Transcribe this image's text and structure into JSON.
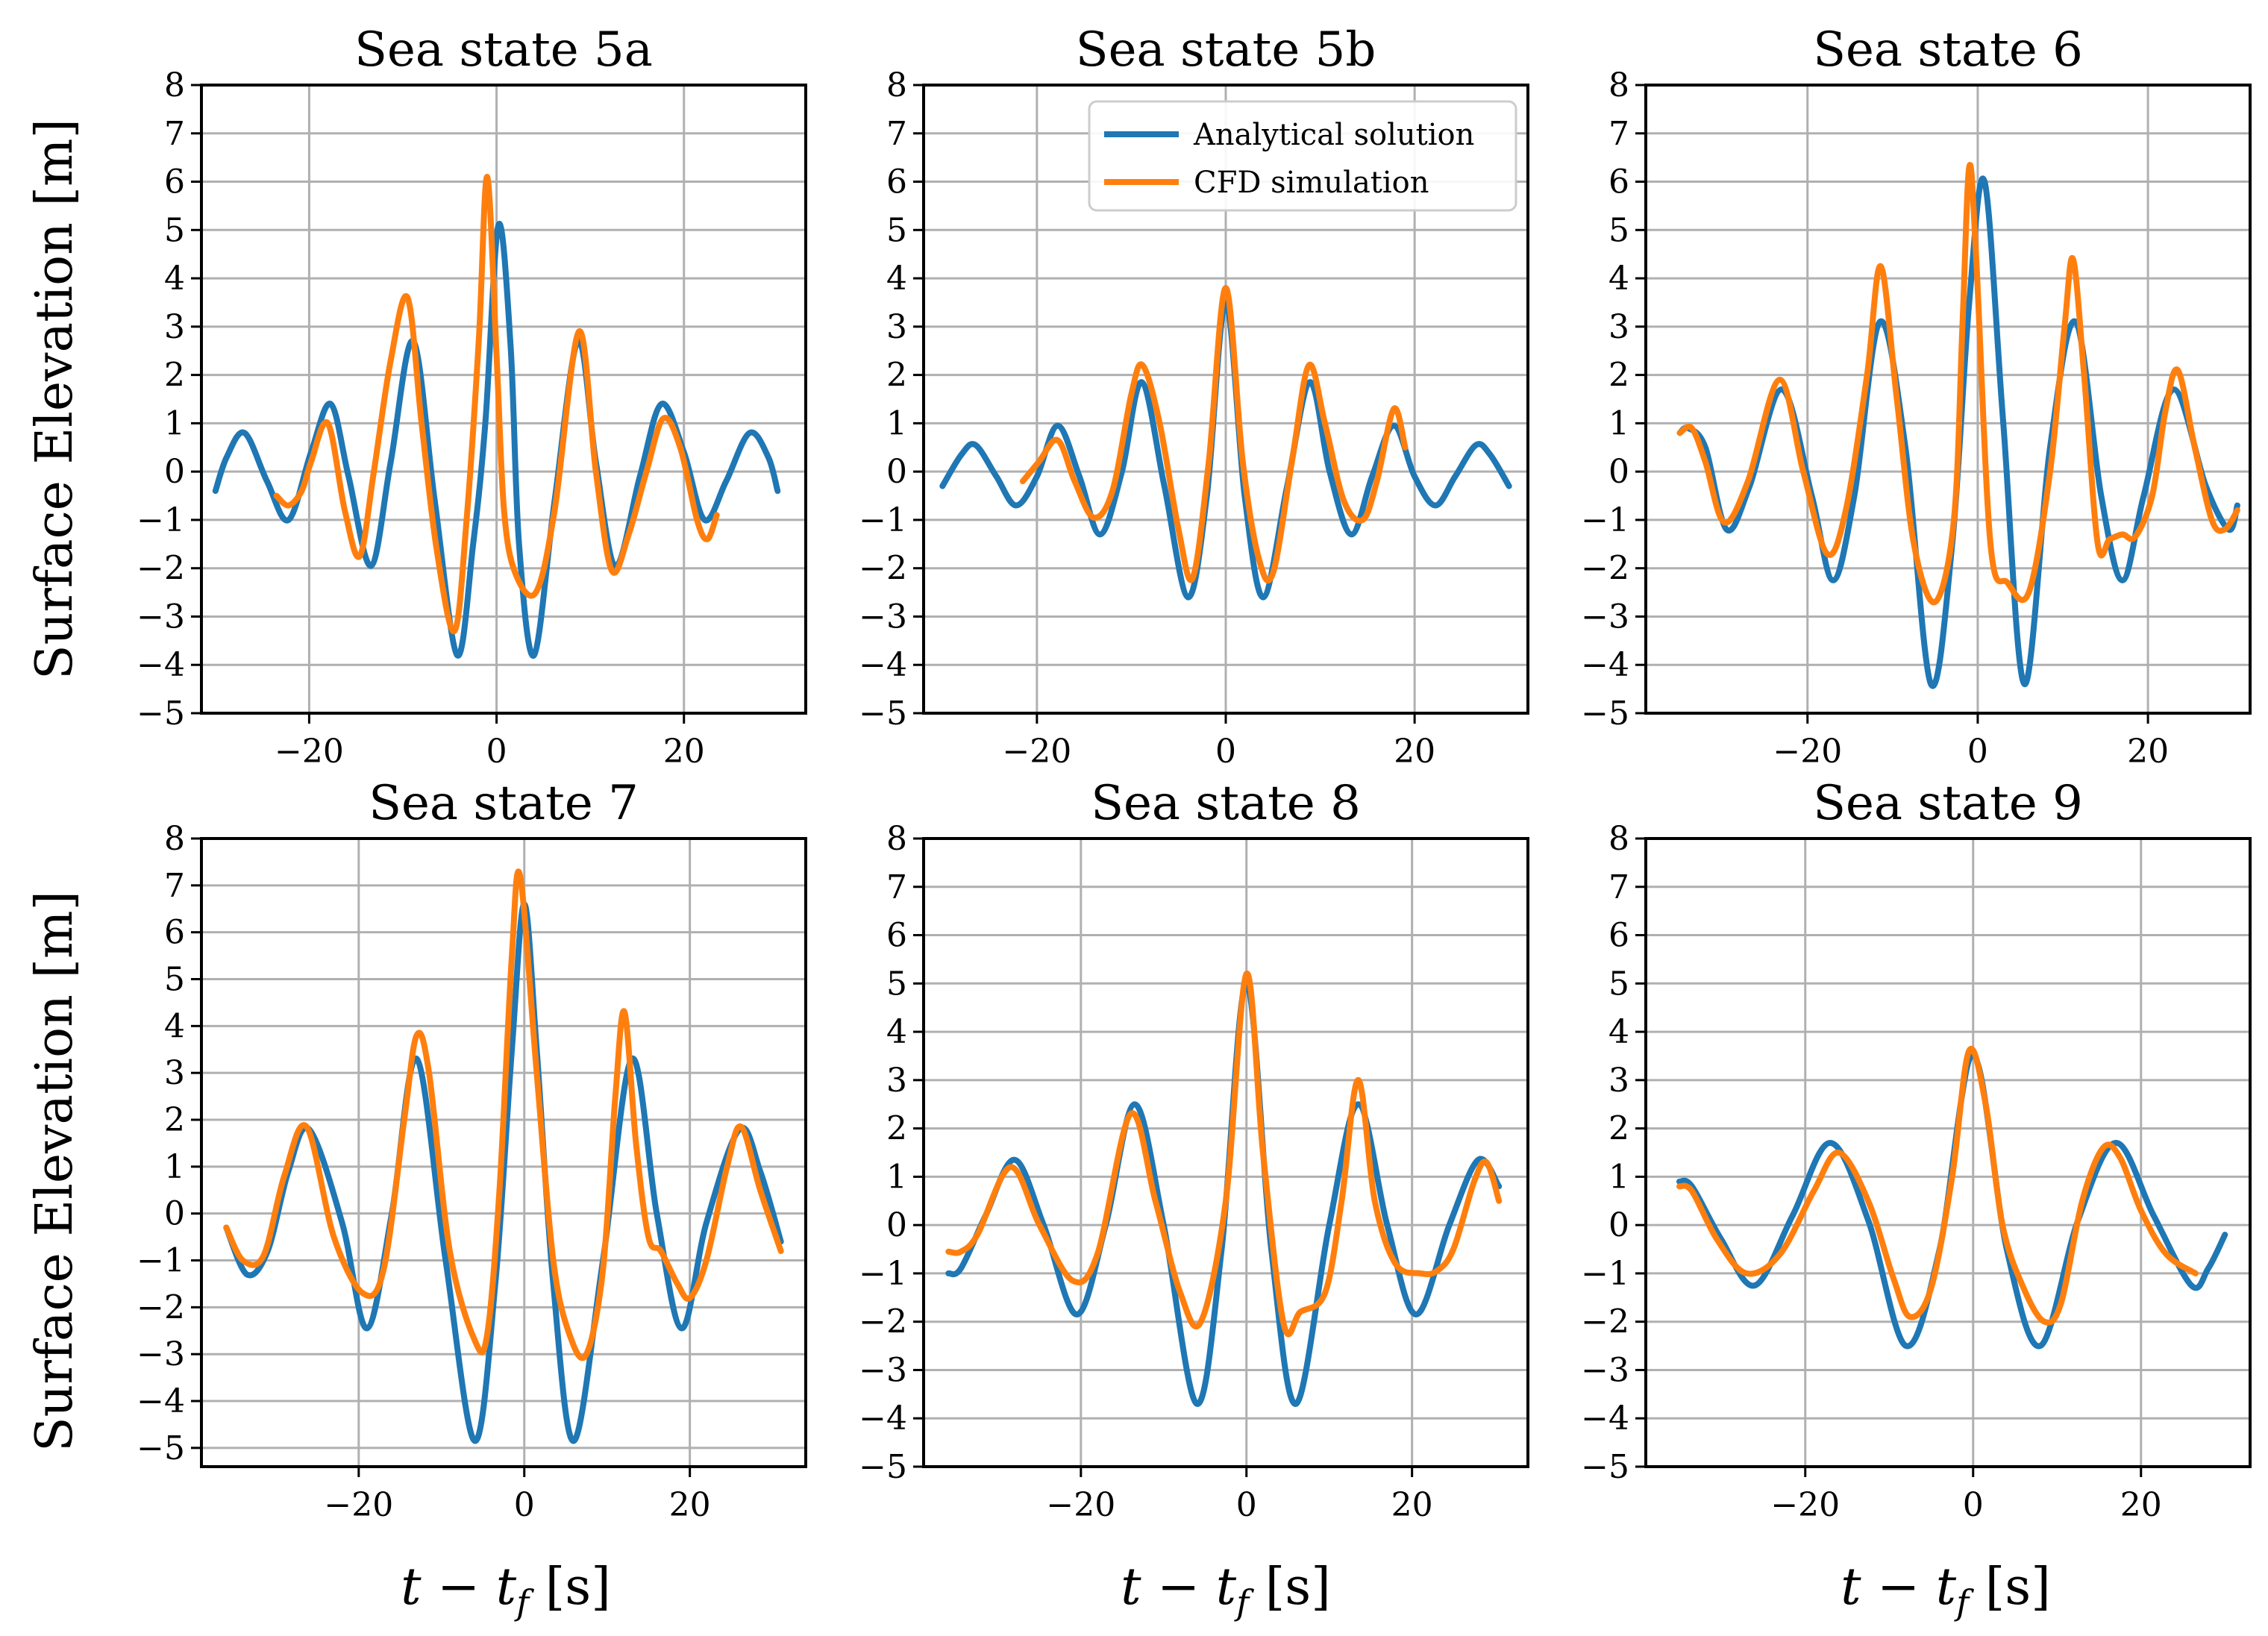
{
  "figure": {
    "ylabel": "Surface Elevation [m]",
    "xlabel": "t − t",
    "xlabel_sub": "f",
    "xlabel_unit": " [s]"
  },
  "legend": {
    "entries": [
      {
        "label": "Analytical solution",
        "color": "#1f77b4"
      },
      {
        "label": "CFD simulation",
        "color": "#ff7f0e"
      }
    ],
    "panel": 1,
    "placement": "upper-center"
  },
  "chart_data": [
    {
      "type": "line",
      "title": "Sea state 5a",
      "xlim": [
        -31.5,
        33
      ],
      "ylim": [
        -5,
        8
      ],
      "xticks": [
        -20,
        0,
        20
      ],
      "xtick_labels": [
        "−20",
        "0",
        "20"
      ],
      "yticks": [
        -5,
        -4,
        -3,
        -2,
        -1,
        0,
        1,
        2,
        3,
        4,
        5,
        6,
        7,
        8
      ],
      "ytick_labels": [
        "−5",
        "−4",
        "−3",
        "−2",
        "−1",
        "0",
        "1",
        "2",
        "3",
        "4",
        "5",
        "6",
        "7",
        "8"
      ],
      "series": [
        {
          "name": "Analytical solution",
          "x": [
            -30,
            -28.8,
            -26.9,
            -24.5,
            -22.2,
            -19.8,
            -17.7,
            -15.8,
            -13.4,
            -11.3,
            -8.9,
            -6.6,
            -4.2,
            -2.5,
            -1.2,
            0.2,
            1.5,
            2.4,
            4.0,
            6.2,
            8.7,
            10.6,
            12.7,
            15.3,
            17.6,
            20.0,
            22.2,
            24.5,
            27.0,
            29.0,
            30.0
          ],
          "y": [
            -0.4,
            0.3,
            0.8,
            -0.2,
            -1.0,
            0.4,
            1.4,
            -0.1,
            -1.95,
            0.2,
            2.7,
            -0.6,
            -3.8,
            -1.5,
            1.0,
            5.1,
            2.6,
            -1.5,
            -3.8,
            -0.6,
            2.7,
            0.2,
            -1.95,
            -0.1,
            1.4,
            0.4,
            -1.0,
            -0.2,
            0.8,
            0.3,
            -0.4
          ]
        },
        {
          "name": "CFD simulation",
          "x": [
            -23.5,
            -22.2,
            -20.8,
            -19.8,
            -18.0,
            -16.2,
            -14.6,
            -13.1,
            -11.3,
            -9.5,
            -8.0,
            -6.4,
            -4.5,
            -3.2,
            -1.9,
            -1.0,
            0.0,
            0.8,
            2.0,
            4.2,
            6.2,
            8.8,
            10.6,
            12.3,
            14.1,
            16.0,
            17.8,
            19.6,
            21.4,
            22.5,
            23.5
          ],
          "y": [
            -0.5,
            -0.7,
            -0.4,
            0.2,
            1.0,
            -0.8,
            -1.75,
            0.0,
            2.3,
            3.6,
            1.0,
            -1.6,
            -3.3,
            -1.0,
            2.7,
            6.1,
            2.4,
            -0.8,
            -2.1,
            -2.5,
            -0.8,
            2.9,
            0.0,
            -2.05,
            -1.3,
            0.0,
            1.1,
            0.5,
            -1.0,
            -1.4,
            -0.9
          ]
        }
      ]
    },
    {
      "type": "line",
      "title": "Sea state 5b",
      "xlim": [
        -32,
        32
      ],
      "ylim": [
        -5,
        8
      ],
      "xticks": [
        -20,
        0,
        20
      ],
      "xtick_labels": [
        "−20",
        "0",
        "20"
      ],
      "yticks": [
        -5,
        -4,
        -3,
        -2,
        -1,
        0,
        1,
        2,
        3,
        4,
        5,
        6,
        7,
        8
      ],
      "ytick_labels": [
        "−5",
        "−4",
        "−3",
        "−2",
        "−1",
        "0",
        "1",
        "2",
        "3",
        "4",
        "5",
        "6",
        "7",
        "8"
      ],
      "series": [
        {
          "name": "Analytical solution",
          "x": [
            -30,
            -28.0,
            -26.5,
            -24.3,
            -22.2,
            -20.0,
            -17.8,
            -15.5,
            -13.3,
            -11.0,
            -8.9,
            -6.5,
            -4.0,
            -2.0,
            0.0,
            2.0,
            4.0,
            6.5,
            8.9,
            11.0,
            13.3,
            15.5,
            17.8,
            20.0,
            22.2,
            24.3,
            26.5,
            28.0,
            30.0
          ],
          "y": [
            -0.3,
            0.35,
            0.55,
            -0.1,
            -0.7,
            -0.1,
            0.95,
            -0.1,
            -1.3,
            0.0,
            1.85,
            -0.3,
            -2.6,
            -0.5,
            3.5,
            -0.5,
            -2.6,
            -0.3,
            1.85,
            0.0,
            -1.3,
            -0.1,
            0.95,
            -0.1,
            -0.7,
            -0.1,
            0.55,
            0.35,
            -0.3
          ]
        },
        {
          "name": "CFD simulation",
          "x": [
            -21.5,
            -19.8,
            -17.8,
            -16.0,
            -14.0,
            -12.0,
            -10.0,
            -8.8,
            -7.0,
            -5.0,
            -3.5,
            -1.8,
            0.0,
            1.8,
            3.5,
            5.0,
            7.0,
            8.8,
            10.5,
            12.5,
            14.5,
            16.0,
            17.8,
            19.0
          ],
          "y": [
            -0.2,
            0.2,
            0.65,
            -0.2,
            -0.95,
            -0.4,
            1.6,
            2.2,
            1.0,
            -1.2,
            -2.2,
            0.2,
            3.8,
            0.2,
            -1.8,
            -2.1,
            0.2,
            2.2,
            1.0,
            -0.6,
            -1.0,
            -0.2,
            1.3,
            0.5
          ]
        }
      ]
    },
    {
      "type": "line",
      "title": "Sea state 6",
      "xlim": [
        -39,
        32
      ],
      "ylim": [
        -5,
        8
      ],
      "xticks": [
        -20,
        0,
        20
      ],
      "xtick_labels": [
        "−20",
        "0",
        "20"
      ],
      "yticks": [
        -5,
        -4,
        -3,
        -2,
        -1,
        0,
        1,
        2,
        3,
        4,
        5,
        6,
        7,
        8
      ],
      "ytick_labels": [
        "−5",
        "−4",
        "−3",
        "−2",
        "−1",
        "0",
        "1",
        "2",
        "3",
        "4",
        "5",
        "6",
        "7",
        "8"
      ],
      "series": [
        {
          "name": "Analytical solution",
          "x": [
            -35,
            -34.0,
            -32.0,
            -29.5,
            -26.8,
            -23.0,
            -19.5,
            -17.0,
            -14.5,
            -11.5,
            -8.5,
            -5.5,
            -3.0,
            -1.0,
            0.8,
            3.0,
            5.5,
            8.5,
            11.5,
            14.5,
            17.0,
            19.5,
            23.0,
            26.8,
            29.5,
            30.5
          ],
          "y": [
            0.8,
            0.9,
            0.5,
            -1.2,
            -0.3,
            1.7,
            -0.5,
            -2.25,
            -0.5,
            3.1,
            0.5,
            -4.4,
            -1.5,
            3.5,
            6.0,
            1.0,
            -4.4,
            0.5,
            3.1,
            -0.5,
            -2.25,
            -0.5,
            1.7,
            -0.3,
            -1.2,
            -0.7
          ]
        },
        {
          "name": "CFD simulation",
          "x": [
            -35,
            -33.6,
            -32.0,
            -29.8,
            -27.0,
            -23.3,
            -20.5,
            -17.7,
            -15.5,
            -13.0,
            -11.4,
            -9.5,
            -7.5,
            -5.0,
            -2.8,
            -1.8,
            -1.0,
            -0.2,
            1.5,
            3.5,
            6.0,
            8.5,
            10.2,
            11.2,
            12.5,
            14.1,
            15.5,
            17.0,
            18.5,
            20.5,
            22.0,
            23.5,
            25.5,
            27.5,
            29.0,
            30.5
          ],
          "y": [
            0.8,
            0.9,
            0.2,
            -1.05,
            -0.2,
            1.9,
            0.0,
            -1.7,
            -0.8,
            2.0,
            4.25,
            1.5,
            -1.5,
            -2.7,
            -1.0,
            3.0,
            6.3,
            4.5,
            -1.5,
            -2.3,
            -2.5,
            0.0,
            3.0,
            4.4,
            2.0,
            -1.5,
            -1.4,
            -1.3,
            -1.35,
            -0.5,
            1.2,
            2.1,
            0.5,
            -1.0,
            -1.2,
            -0.8
          ]
        }
      ]
    },
    {
      "type": "line",
      "title": "Sea state 7",
      "xlim": [
        -39,
        34
      ],
      "ylim": [
        -5.4,
        8
      ],
      "xticks": [
        -20,
        0,
        20
      ],
      "xtick_labels": [
        "−20",
        "0",
        "20"
      ],
      "yticks": [
        -5,
        -4,
        -3,
        -2,
        -1,
        0,
        1,
        2,
        3,
        4,
        5,
        6,
        7,
        8
      ],
      "ytick_labels": [
        "−5",
        "−4",
        "−3",
        "−2",
        "−1",
        "0",
        "1",
        "2",
        "3",
        "4",
        "5",
        "6",
        "7",
        "8"
      ],
      "series": [
        {
          "name": "Analytical solution",
          "x": [
            -36,
            -33.5,
            -31.0,
            -28.5,
            -26.0,
            -22.0,
            -19.0,
            -16.0,
            -13.0,
            -9.5,
            -6.0,
            -3.5,
            -1.5,
            0.0,
            1.5,
            3.5,
            6.0,
            9.5,
            13.0,
            16.0,
            19.0,
            22.0,
            26.0,
            28.5,
            31.0
          ],
          "y": [
            -0.3,
            -1.3,
            -0.8,
            0.9,
            1.8,
            -0.2,
            -2.45,
            0.0,
            3.3,
            -1.0,
            -4.85,
            -1.5,
            3.5,
            6.6,
            3.5,
            -1.5,
            -4.85,
            -1.0,
            3.3,
            0.0,
            -2.45,
            -0.2,
            1.8,
            0.9,
            -0.6
          ]
        },
        {
          "name": "CFD simulation",
          "x": [
            -36,
            -34.0,
            -31.5,
            -29.0,
            -26.3,
            -23.0,
            -19.5,
            -17.0,
            -14.5,
            -13.0,
            -11.5,
            -9.0,
            -6.0,
            -4.5,
            -3.0,
            -1.5,
            -0.5,
            1.5,
            3.5,
            5.5,
            7.5,
            9.5,
            11.0,
            12.1,
            13.5,
            15.0,
            16.5,
            18.5,
            20.0,
            22.0,
            24.5,
            26.2,
            28.5,
            31.0
          ],
          "y": [
            -0.3,
            -1.0,
            -0.9,
            0.8,
            1.85,
            -0.5,
            -1.7,
            -1.2,
            2.0,
            3.8,
            3.0,
            -0.8,
            -2.7,
            -2.6,
            0.5,
            5.5,
            7.2,
            3.0,
            -1.0,
            -2.6,
            -3.0,
            -1.2,
            2.5,
            4.3,
            1.5,
            -0.5,
            -0.8,
            -1.5,
            -1.8,
            -1.0,
            1.0,
            1.85,
            0.5,
            -0.8
          ]
        }
      ]
    },
    {
      "type": "line",
      "title": "Sea state 8",
      "xlim": [
        -39,
        34
      ],
      "ylim": [
        -5,
        8
      ],
      "xticks": [
        -20,
        0,
        20
      ],
      "xtick_labels": [
        "−20",
        "0",
        "20"
      ],
      "yticks": [
        -5,
        -4,
        -3,
        -2,
        -1,
        0,
        1,
        2,
        3,
        4,
        5,
        6,
        7,
        8
      ],
      "ytick_labels": [
        "−5",
        "−4",
        "−3",
        "−2",
        "−1",
        "0",
        "1",
        "2",
        "3",
        "4",
        "5",
        "6",
        "7",
        "8"
      ],
      "series": [
        {
          "name": "Analytical solution",
          "x": [
            -36,
            -34.5,
            -31.5,
            -28.0,
            -24.5,
            -20.5,
            -17.0,
            -13.5,
            -10.0,
            -6.0,
            -3.0,
            0.0,
            3.0,
            6.0,
            10.0,
            13.5,
            17.0,
            20.5,
            24.5,
            28.0,
            30.5
          ],
          "y": [
            -1.0,
            -0.9,
            0.2,
            1.35,
            0.0,
            -1.85,
            0.0,
            2.5,
            0.0,
            -3.7,
            -0.5,
            5.0,
            -0.5,
            -3.7,
            0.0,
            2.5,
            0.0,
            -1.85,
            0.0,
            1.35,
            0.8
          ]
        },
        {
          "name": "CFD simulation",
          "x": [
            -36,
            -34.5,
            -32.5,
            -28.5,
            -25.0,
            -21.0,
            -18.0,
            -14.0,
            -11.0,
            -8.0,
            -5.5,
            -2.5,
            0.0,
            2.0,
            4.5,
            6.5,
            9.5,
            11.5,
            13.5,
            15.5,
            18.0,
            21.0,
            23.0,
            25.0,
            27.5,
            29.0,
            30.5
          ],
          "y": [
            -0.55,
            -0.55,
            -0.2,
            1.2,
            0.0,
            -1.15,
            -0.6,
            2.3,
            0.5,
            -1.4,
            -2.0,
            0.5,
            5.2,
            1.5,
            -2.05,
            -1.8,
            -1.4,
            0.5,
            3.0,
            0.5,
            -0.8,
            -1.0,
            -0.95,
            -0.5,
            0.9,
            1.3,
            0.5
          ]
        }
      ]
    },
    {
      "type": "line",
      "title": "Sea state 9",
      "xlim": [
        -39,
        33
      ],
      "ylim": [
        -5,
        8
      ],
      "xticks": [
        -20,
        0,
        20
      ],
      "xtick_labels": [
        "−20",
        "0",
        "20"
      ],
      "yticks": [
        -5,
        -4,
        -3,
        -2,
        -1,
        0,
        1,
        2,
        3,
        4,
        5,
        6,
        7,
        8
      ],
      "ytick_labels": [
        "−5",
        "−4",
        "−3",
        "−2",
        "−1",
        "0",
        "1",
        "2",
        "3",
        "4",
        "5",
        "6",
        "7",
        "8"
      ],
      "series": [
        {
          "name": "Analytical solution",
          "x": [
            -35,
            -33.5,
            -30.0,
            -26.0,
            -21.5,
            -17.0,
            -12.5,
            -8.0,
            -4.0,
            0.0,
            4.0,
            8.0,
            12.5,
            17.0,
            21.5,
            26.0,
            28.0,
            30.0
          ],
          "y": [
            0.9,
            0.8,
            -0.3,
            -1.25,
            0.2,
            1.7,
            0.1,
            -2.5,
            -0.5,
            3.5,
            -0.5,
            -2.5,
            0.1,
            1.7,
            0.2,
            -1.25,
            -0.9,
            -0.2
          ]
        },
        {
          "name": "CFD simulation",
          "x": [
            -35,
            -33.5,
            -30.5,
            -27.0,
            -23.0,
            -19.0,
            -16.0,
            -12.5,
            -9.5,
            -7.5,
            -5.0,
            -2.5,
            -0.5,
            1.5,
            3.5,
            6.0,
            8.5,
            10.5,
            13.0,
            15.5,
            17.5,
            20.0,
            23.0,
            26.5
          ],
          "y": [
            0.8,
            0.7,
            -0.3,
            -1.0,
            -0.6,
            0.7,
            1.5,
            0.5,
            -1.1,
            -1.9,
            -1.3,
            1.0,
            3.6,
            2.5,
            0.0,
            -1.3,
            -2.0,
            -1.6,
            0.5,
            1.6,
            1.4,
            0.3,
            -0.6,
            -1.0
          ]
        }
      ]
    }
  ]
}
